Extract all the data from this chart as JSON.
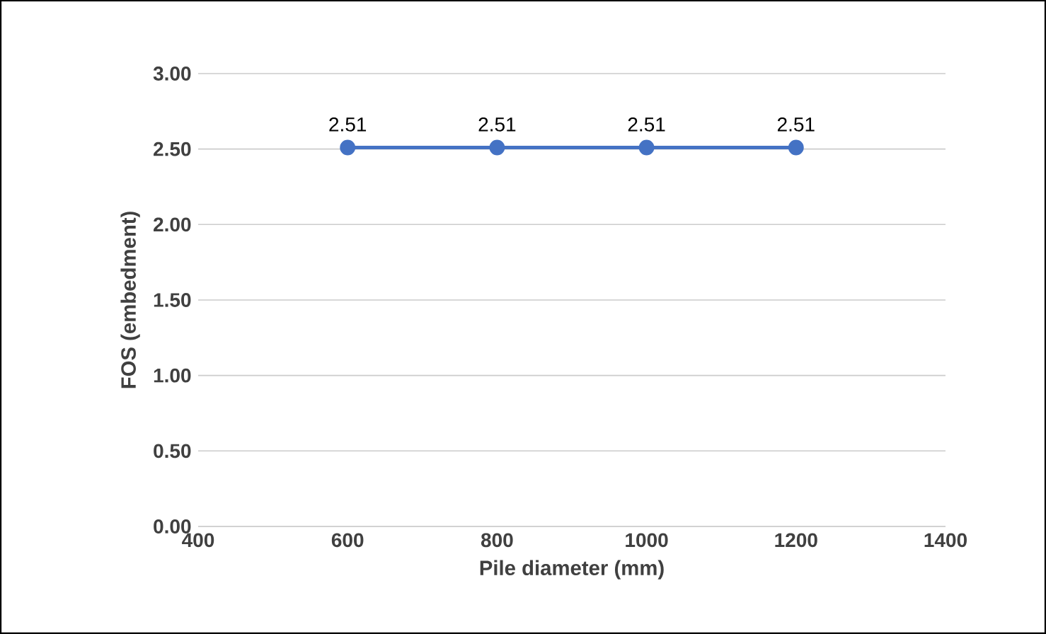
{
  "chart_data": {
    "type": "line",
    "xlabel": "Pile diameter (mm)",
    "ylabel": "FOS (embedment)",
    "x": [
      600,
      800,
      1000,
      1200
    ],
    "values": [
      2.51,
      2.51,
      2.51,
      2.51
    ],
    "color": "#4472c4",
    "marker": "circle",
    "data_labels": true,
    "grid": "y",
    "xlim": [
      400,
      1400
    ],
    "xticks": [
      400,
      600,
      800,
      1000,
      1200,
      1400
    ],
    "ylim": [
      0,
      3
    ],
    "yticks": [
      {
        "value": 0,
        "label": "0.00"
      },
      {
        "value": 0.5,
        "label": "0.50"
      },
      {
        "value": 1,
        "label": "1.00"
      },
      {
        "value": 1.5,
        "label": "1.50"
      },
      {
        "value": 2,
        "label": "2.00"
      },
      {
        "value": 2.5,
        "label": "2.50"
      },
      {
        "value": 3,
        "label": "3.00"
      }
    ]
  }
}
